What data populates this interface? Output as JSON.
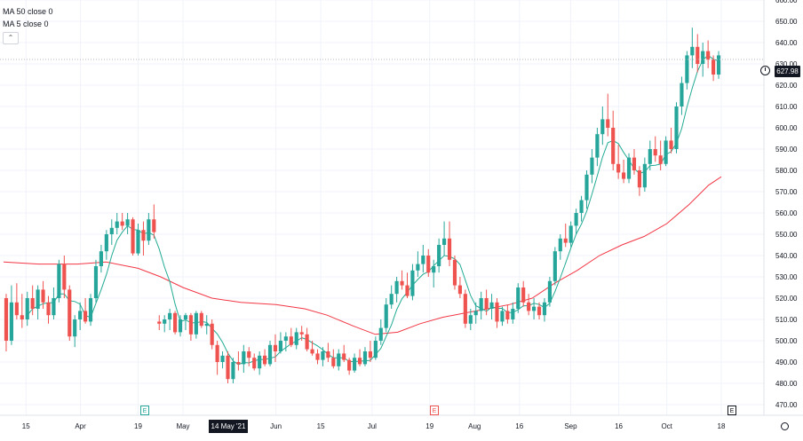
{
  "legend": {
    "ma50": "MA 50 close 0",
    "ma5": "MA 5 close 0",
    "collapse_icon": "chevron-up-icon"
  },
  "price_tag": "627.98",
  "date_tag": "14 May '21",
  "flags": [
    {
      "label": "E",
      "date": "2021-04-20",
      "color": "#26a69a"
    },
    {
      "label": "E",
      "date": "2021-07-20",
      "color": "#ef5350"
    },
    {
      "label": "E",
      "date": "2021-10-19",
      "color": "#131722"
    }
  ],
  "colors": {
    "up": "#26a69a",
    "down": "#ef5350",
    "ma50": "#f23645",
    "ma5": "#22ab94",
    "grid": "#f0f3fa",
    "axis_text": "#131722"
  },
  "chart_data": {
    "type": "candlestick",
    "y_axis": {
      "range": [
        465,
        660
      ],
      "tick_labels": [
        "470.00",
        "480.00",
        "490.00",
        "500.00",
        "510.00",
        "520.00",
        "530.00",
        "540.00",
        "550.00",
        "560.00",
        "570.00",
        "580.00",
        "590.00",
        "600.00",
        "610.00",
        "620.00",
        "630.00",
        "640.00",
        "650.00",
        "660.00"
      ]
    },
    "x_axis": {
      "tick_labels": [
        "15",
        "Apr",
        "19",
        "May",
        "14 May '21",
        "Jun",
        "15",
        "Jul",
        "19",
        "Aug",
        "16",
        "Sep",
        "16",
        "Oct",
        "18"
      ]
    },
    "grid": true,
    "last_price": 627.98,
    "series": [
      {
        "name": "MA 50 close 0",
        "type": "line"
      },
      {
        "name": "MA 5 close 0",
        "type": "line"
      }
    ],
    "ma50_points": [
      [
        "2021-03-08",
        537
      ],
      [
        "2021-03-19",
        536
      ],
      [
        "2021-03-31",
        536
      ],
      [
        "2021-04-09",
        537
      ],
      [
        "2021-04-19",
        534
      ],
      [
        "2021-04-26",
        530
      ],
      [
        "2021-05-03",
        525
      ],
      [
        "2021-05-12",
        520
      ],
      [
        "2021-05-21",
        518
      ],
      [
        "2021-06-01",
        517
      ],
      [
        "2021-06-10",
        515
      ],
      [
        "2021-06-17",
        512
      ],
      [
        "2021-06-25",
        507
      ],
      [
        "2021-07-02",
        503
      ],
      [
        "2021-07-09",
        504
      ],
      [
        "2021-07-16",
        508
      ],
      [
        "2021-07-23",
        511
      ],
      [
        "2021-07-30",
        513
      ],
      [
        "2021-08-06",
        515
      ],
      [
        "2021-08-13",
        517
      ],
      [
        "2021-08-20",
        520
      ],
      [
        "2021-08-27",
        527
      ],
      [
        "2021-09-03",
        533
      ],
      [
        "2021-09-10",
        540
      ],
      [
        "2021-09-17",
        545
      ],
      [
        "2021-09-24",
        549
      ],
      [
        "2021-10-01",
        555
      ],
      [
        "2021-10-08",
        564
      ],
      [
        "2021-10-14",
        573
      ],
      [
        "2021-10-18",
        577
      ]
    ],
    "ohlc": [
      [
        "2021-03-08",
        520,
        522,
        495,
        500
      ],
      [
        "2021-03-09",
        500,
        526,
        498,
        518
      ],
      [
        "2021-03-10",
        518,
        527,
        510,
        512
      ],
      [
        "2021-03-11",
        512,
        522,
        506,
        510
      ],
      [
        "2021-03-12",
        510,
        523,
        507,
        520
      ],
      [
        "2021-03-15",
        520,
        526,
        512,
        515
      ],
      [
        "2021-03-16",
        515,
        526,
        510,
        524
      ],
      [
        "2021-03-17",
        524,
        528,
        515,
        518
      ],
      [
        "2021-03-18",
        518,
        521,
        508,
        512
      ],
      [
        "2021-03-19",
        512,
        525,
        510,
        520
      ],
      [
        "2021-03-22",
        520,
        538,
        518,
        536
      ],
      [
        "2021-03-23",
        536,
        540,
        520,
        524
      ],
      [
        "2021-03-24",
        524,
        526,
        500,
        502
      ],
      [
        "2021-03-25",
        502,
        512,
        497,
        510
      ],
      [
        "2021-03-26",
        510,
        518,
        505,
        514
      ],
      [
        "2021-03-29",
        514,
        520,
        508,
        509
      ],
      [
        "2021-03-30",
        509,
        522,
        507,
        520
      ],
      [
        "2021-03-31",
        520,
        538,
        518,
        535
      ],
      [
        "2021-04-01",
        535,
        545,
        532,
        542
      ],
      [
        "2021-04-05",
        542,
        552,
        538,
        550
      ],
      [
        "2021-04-06",
        550,
        557,
        545,
        553
      ],
      [
        "2021-04-07",
        553,
        560,
        550,
        556
      ],
      [
        "2021-04-08",
        556,
        560,
        552,
        554
      ],
      [
        "2021-04-09",
        554,
        560,
        550,
        557
      ],
      [
        "2021-04-12",
        557,
        558,
        540,
        541
      ],
      [
        "2021-04-13",
        541,
        555,
        540,
        552
      ],
      [
        "2021-04-14",
        552,
        556,
        540,
        547
      ],
      [
        "2021-04-15",
        547,
        560,
        545,
        557
      ],
      [
        "2021-04-16",
        557,
        564,
        548,
        551
      ],
      [
        "2021-04-19",
        509,
        512,
        505,
        508
      ],
      [
        "2021-04-20",
        508,
        512,
        504,
        510
      ],
      [
        "2021-04-21",
        510,
        515,
        505,
        513
      ],
      [
        "2021-04-22",
        513,
        514,
        503,
        504
      ],
      [
        "2021-04-23",
        504,
        512,
        502,
        510
      ],
      [
        "2021-04-26",
        510,
        513,
        505,
        512
      ],
      [
        "2021-04-27",
        512,
        513,
        500,
        503
      ],
      [
        "2021-04-28",
        503,
        514,
        501,
        513
      ],
      [
        "2021-04-29",
        513,
        514,
        506,
        507
      ],
      [
        "2021-04-30",
        507,
        512,
        503,
        508
      ],
      [
        "2021-05-03",
        508,
        510,
        496,
        498
      ],
      [
        "2021-05-04",
        498,
        500,
        484,
        490
      ],
      [
        "2021-05-05",
        490,
        495,
        487,
        493
      ],
      [
        "2021-05-06",
        493,
        495,
        480,
        482
      ],
      [
        "2021-05-07",
        482,
        492,
        480,
        490
      ],
      [
        "2021-05-10",
        490,
        495,
        486,
        489
      ],
      [
        "2021-05-11",
        489,
        498,
        485,
        495
      ],
      [
        "2021-05-12",
        495,
        497,
        488,
        492
      ],
      [
        "2021-05-13",
        492,
        494,
        486,
        487
      ],
      [
        "2021-05-14",
        487,
        495,
        484,
        493
      ],
      [
        "2021-05-17",
        493,
        496,
        488,
        489
      ],
      [
        "2021-05-18",
        489,
        500,
        488,
        498
      ],
      [
        "2021-05-19",
        498,
        503,
        490,
        495
      ],
      [
        "2021-05-20",
        495,
        504,
        494,
        500
      ],
      [
        "2021-05-21",
        500,
        504,
        495,
        502
      ],
      [
        "2021-05-24",
        502,
        506,
        497,
        498
      ],
      [
        "2021-05-25",
        498,
        506,
        496,
        504
      ],
      [
        "2021-05-26",
        504,
        507,
        500,
        503
      ],
      [
        "2021-05-27",
        503,
        506,
        495,
        496
      ],
      [
        "2021-05-28",
        496,
        500,
        493,
        494
      ],
      [
        "2021-06-01",
        494,
        496,
        489,
        491
      ],
      [
        "2021-06-02",
        491,
        497,
        488,
        495
      ],
      [
        "2021-06-03",
        495,
        499,
        490,
        492
      ],
      [
        "2021-06-04",
        492,
        496,
        487,
        488
      ],
      [
        "2021-06-07",
        488,
        496,
        486,
        494
      ],
      [
        "2021-06-08",
        494,
        498,
        490,
        491
      ],
      [
        "2021-06-09",
        491,
        492,
        484,
        486
      ],
      [
        "2021-06-10",
        486,
        494,
        485,
        492
      ],
      [
        "2021-06-11",
        492,
        496,
        488,
        489
      ],
      [
        "2021-06-14",
        489,
        497,
        488,
        495
      ],
      [
        "2021-06-15",
        495,
        500,
        490,
        492
      ],
      [
        "2021-06-16",
        492,
        502,
        491,
        500
      ],
      [
        "2021-06-17",
        500,
        510,
        498,
        506
      ],
      [
        "2021-06-18",
        506,
        520,
        504,
        517
      ],
      [
        "2021-06-21",
        517,
        526,
        515,
        522
      ],
      [
        "2021-06-22",
        522,
        530,
        518,
        528
      ],
      [
        "2021-06-23",
        528,
        533,
        524,
        526
      ],
      [
        "2021-06-24",
        526,
        532,
        520,
        521
      ],
      [
        "2021-06-25",
        521,
        536,
        519,
        533
      ],
      [
        "2021-06-28",
        533,
        542,
        530,
        536
      ],
      [
        "2021-06-29",
        536,
        545,
        532,
        540
      ],
      [
        "2021-06-30",
        540,
        543,
        530,
        532
      ],
      [
        "2021-07-01",
        532,
        538,
        525,
        535
      ],
      [
        "2021-07-02",
        535,
        548,
        532,
        545
      ],
      [
        "2021-07-06",
        545,
        556,
        540,
        548
      ],
      [
        "2021-07-07",
        548,
        556,
        535,
        538
      ],
      [
        "2021-07-08",
        538,
        540,
        524,
        526
      ],
      [
        "2021-07-09",
        526,
        530,
        520,
        522
      ],
      [
        "2021-07-12",
        522,
        524,
        506,
        508
      ],
      [
        "2021-07-13",
        508,
        515,
        505,
        512
      ],
      [
        "2021-07-14",
        512,
        518,
        508,
        514
      ],
      [
        "2021-07-15",
        514,
        523,
        510,
        520
      ],
      [
        "2021-07-16",
        520,
        524,
        512,
        515
      ],
      [
        "2021-07-19",
        515,
        522,
        510,
        518
      ],
      [
        "2021-07-20",
        518,
        520,
        506,
        509
      ],
      [
        "2021-07-21",
        509,
        516,
        507,
        514
      ],
      [
        "2021-07-22",
        514,
        517,
        508,
        510
      ],
      [
        "2021-07-23",
        510,
        518,
        508,
        515
      ],
      [
        "2021-07-26",
        515,
        527,
        513,
        525
      ],
      [
        "2021-07-27",
        525,
        528,
        516,
        518
      ],
      [
        "2021-07-28",
        518,
        522,
        512,
        514
      ],
      [
        "2021-07-29",
        514,
        520,
        510,
        516
      ],
      [
        "2021-07-30",
        516,
        518,
        510,
        512
      ],
      [
        "2021-08-02",
        512,
        520,
        509,
        518
      ],
      [
        "2021-08-03",
        518,
        530,
        516,
        528
      ],
      [
        "2021-08-04",
        528,
        544,
        526,
        542
      ],
      [
        "2021-08-05",
        542,
        550,
        538,
        548
      ],
      [
        "2021-08-06",
        548,
        555,
        544,
        546
      ],
      [
        "2021-08-09",
        546,
        556,
        544,
        554
      ],
      [
        "2021-08-10",
        554,
        562,
        550,
        560
      ],
      [
        "2021-08-11",
        560,
        568,
        556,
        566
      ],
      [
        "2021-08-12",
        566,
        580,
        562,
        578
      ],
      [
        "2021-08-13",
        578,
        590,
        574,
        586
      ],
      [
        "2021-08-16",
        586,
        600,
        582,
        597
      ],
      [
        "2021-08-17",
        597,
        610,
        592,
        604
      ],
      [
        "2021-08-18",
        604,
        616,
        596,
        600
      ],
      [
        "2021-08-19",
        600,
        608,
        580,
        583
      ],
      [
        "2021-08-20",
        583,
        592,
        576,
        579
      ],
      [
        "2021-08-23",
        579,
        585,
        574,
        576
      ],
      [
        "2021-08-24",
        576,
        588,
        574,
        586
      ],
      [
        "2021-08-25",
        586,
        590,
        578,
        580
      ],
      [
        "2021-08-26",
        580,
        582,
        568,
        572
      ],
      [
        "2021-08-27",
        572,
        586,
        570,
        583
      ],
      [
        "2021-08-30",
        583,
        594,
        580,
        590
      ],
      [
        "2021-08-31",
        590,
        596,
        584,
        587
      ],
      [
        "2021-09-01",
        587,
        594,
        580,
        583
      ],
      [
        "2021-09-02",
        583,
        596,
        582,
        594
      ],
      [
        "2021-09-03",
        594,
        600,
        588,
        590
      ],
      [
        "2021-09-07",
        590,
        612,
        588,
        610
      ],
      [
        "2021-09-08",
        610,
        624,
        606,
        621
      ],
      [
        "2021-09-09",
        621,
        636,
        618,
        634
      ],
      [
        "2021-09-10",
        634,
        647,
        628,
        638
      ],
      [
        "2021-09-13",
        638,
        644,
        626,
        630
      ],
      [
        "2021-09-14",
        630,
        640,
        624,
        636
      ],
      [
        "2021-09-15",
        636,
        641,
        628,
        632
      ],
      [
        "2021-09-16",
        632,
        634,
        622,
        625
      ],
      [
        "2021-09-17",
        625,
        636,
        623,
        634
      ]
    ]
  }
}
